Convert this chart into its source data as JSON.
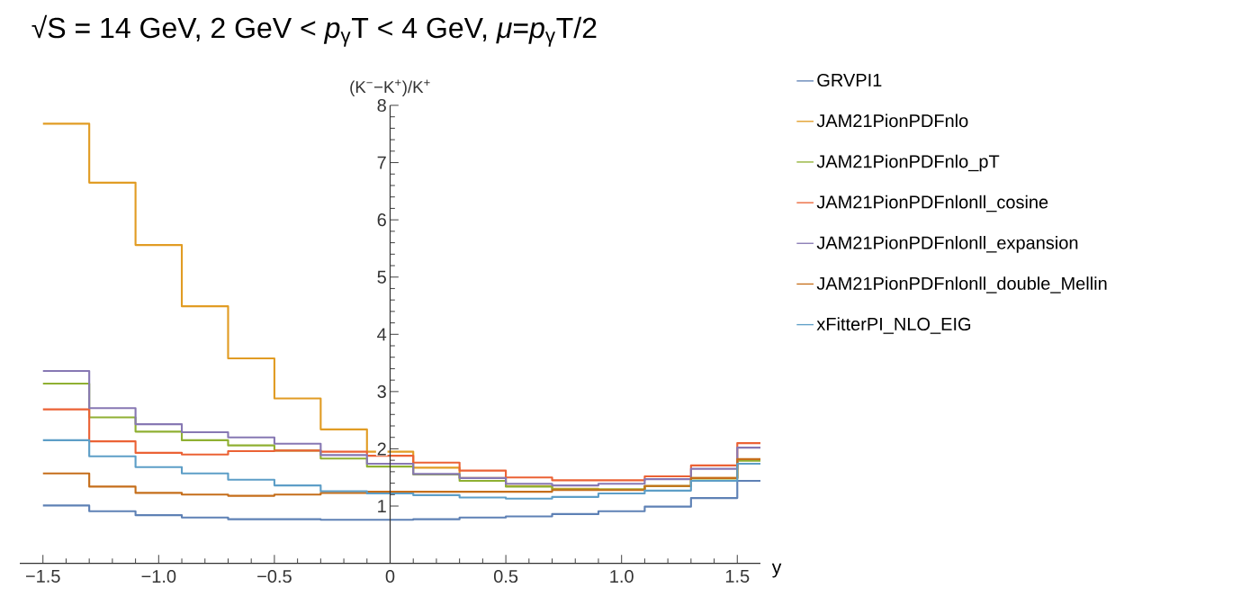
{
  "chart_data": {
    "type": "step",
    "title": "√S = 14 GeV, 2 GeV < *p*$_{γ}$T < 4 GeV, *μ*=*p*$_{γ}$T/2",
    "xlabel": "y",
    "ylabel": "(K$^{−}$−K$^{+}$)/K$^{+}$",
    "x": [
      -1.5,
      -1.3,
      -1.1,
      -0.9,
      -0.7,
      -0.5,
      -0.3,
      -0.1,
      0.1,
      0.3,
      0.5,
      0.7,
      0.9,
      1.1,
      1.3,
      1.5,
      1.6
    ],
    "series": [
      {
        "name": "GRVPI1",
        "color": "#5e81b5",
        "values": [
          1.01,
          0.91,
          0.84,
          0.8,
          0.77,
          0.77,
          0.76,
          0.76,
          0.77,
          0.8,
          0.82,
          0.86,
          0.91,
          0.99,
          1.14,
          1.44,
          1.44
        ]
      },
      {
        "name": "JAM21PionPDFnlo",
        "color": "#e19c24",
        "values": [
          7.68,
          6.65,
          5.56,
          4.49,
          3.58,
          2.88,
          2.34,
          1.95,
          1.67,
          1.49,
          1.35,
          1.3,
          1.29,
          1.35,
          1.49,
          1.81,
          1.81
        ]
      },
      {
        "name": "JAM21PionPDFnlo_pT",
        "color": "#8fb032",
        "values": [
          3.14,
          2.55,
          2.3,
          2.15,
          2.06,
          1.97,
          1.83,
          1.69,
          1.55,
          1.44,
          1.34,
          1.29,
          1.29,
          1.35,
          1.48,
          1.79,
          1.79
        ]
      },
      {
        "name": "JAM21PionPDFnlonll_cosine",
        "color": "#eb6235",
        "values": [
          2.69,
          2.13,
          1.93,
          1.9,
          1.96,
          1.97,
          1.95,
          1.88,
          1.76,
          1.62,
          1.5,
          1.45,
          1.45,
          1.52,
          1.71,
          2.1,
          2.1
        ]
      },
      {
        "name": "JAM21PionPDFnlonll_expansion",
        "color": "#8778b3",
        "values": [
          3.36,
          2.71,
          2.43,
          2.29,
          2.2,
          2.09,
          1.89,
          1.74,
          1.56,
          1.49,
          1.39,
          1.36,
          1.39,
          1.47,
          1.65,
          2.02,
          2.02
        ]
      },
      {
        "name": "JAM21PionPDFnlonll_double_Mellin",
        "color": "#c56e1a",
        "values": [
          1.57,
          1.34,
          1.23,
          1.2,
          1.18,
          1.2,
          1.23,
          1.25,
          1.25,
          1.25,
          1.25,
          1.28,
          1.28,
          1.35,
          1.49,
          1.82,
          1.82
        ]
      },
      {
        "name": "xFitterPI_NLO_EIG",
        "color": "#5d9ec7",
        "values": [
          2.15,
          1.87,
          1.68,
          1.57,
          1.46,
          1.36,
          1.26,
          1.22,
          1.19,
          1.15,
          1.13,
          1.16,
          1.22,
          1.27,
          1.44,
          1.74,
          1.74
        ]
      }
    ],
    "xlim": [
      -1.6,
      1.6
    ],
    "ylim": [
      0,
      8
    ],
    "xticks": [
      {
        "value": -1.5,
        "label": "−1.5"
      },
      {
        "value": -1,
        "label": "−1.0"
      },
      {
        "value": -0.5,
        "label": "−0.5"
      },
      0,
      0.5,
      {
        "value": 1,
        "label": "1.0"
      },
      1.5
    ],
    "yticks": [
      1,
      2,
      3,
      4,
      5,
      6,
      7,
      8
    ],
    "legend": "right"
  }
}
